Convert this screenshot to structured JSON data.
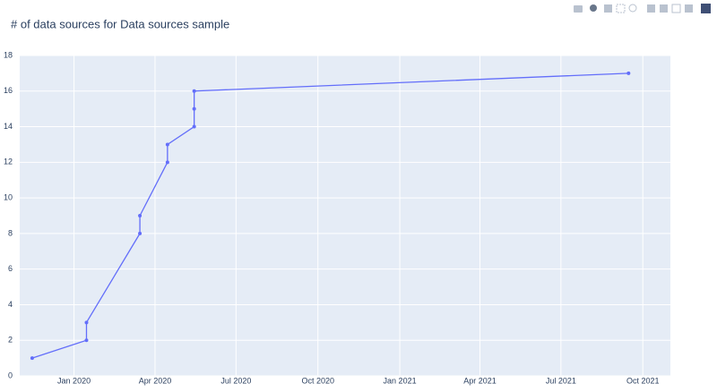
{
  "chart_data": {
    "type": "line",
    "title": "# of data sources for Data sources sample",
    "x": [
      "2019-11",
      "2020-01",
      "2020-01",
      "2020-03",
      "2020-03",
      "2020-04",
      "2020-04",
      "2020-05",
      "2020-05",
      "2020-05",
      "2021-09"
    ],
    "series": [
      {
        "color": "#636efa",
        "values": [
          1,
          2,
          3,
          8,
          9,
          12,
          13,
          14,
          15,
          16,
          17
        ]
      }
    ],
    "xlim": [
      "2019-11",
      "2021-11"
    ],
    "xticks": [
      {
        "value": "2020-01",
        "label": "Jan 2020"
      },
      {
        "value": "2020-04",
        "label": "Apr 2020"
      },
      {
        "value": "2020-07",
        "label": "Jul 2020"
      },
      {
        "value": "2020-10",
        "label": "Oct 2020"
      },
      {
        "value": "2021-01",
        "label": "Jan 2021"
      },
      {
        "value": "2021-04",
        "label": "Apr 2021"
      },
      {
        "value": "2021-07",
        "label": "Jul 2021"
      },
      {
        "value": "2021-10",
        "label": "Oct 2021"
      }
    ],
    "ylim": [
      0,
      18
    ],
    "yticks": [
      0,
      2,
      4,
      6,
      8,
      10,
      12,
      14,
      16,
      18
    ],
    "grid": true
  }
}
